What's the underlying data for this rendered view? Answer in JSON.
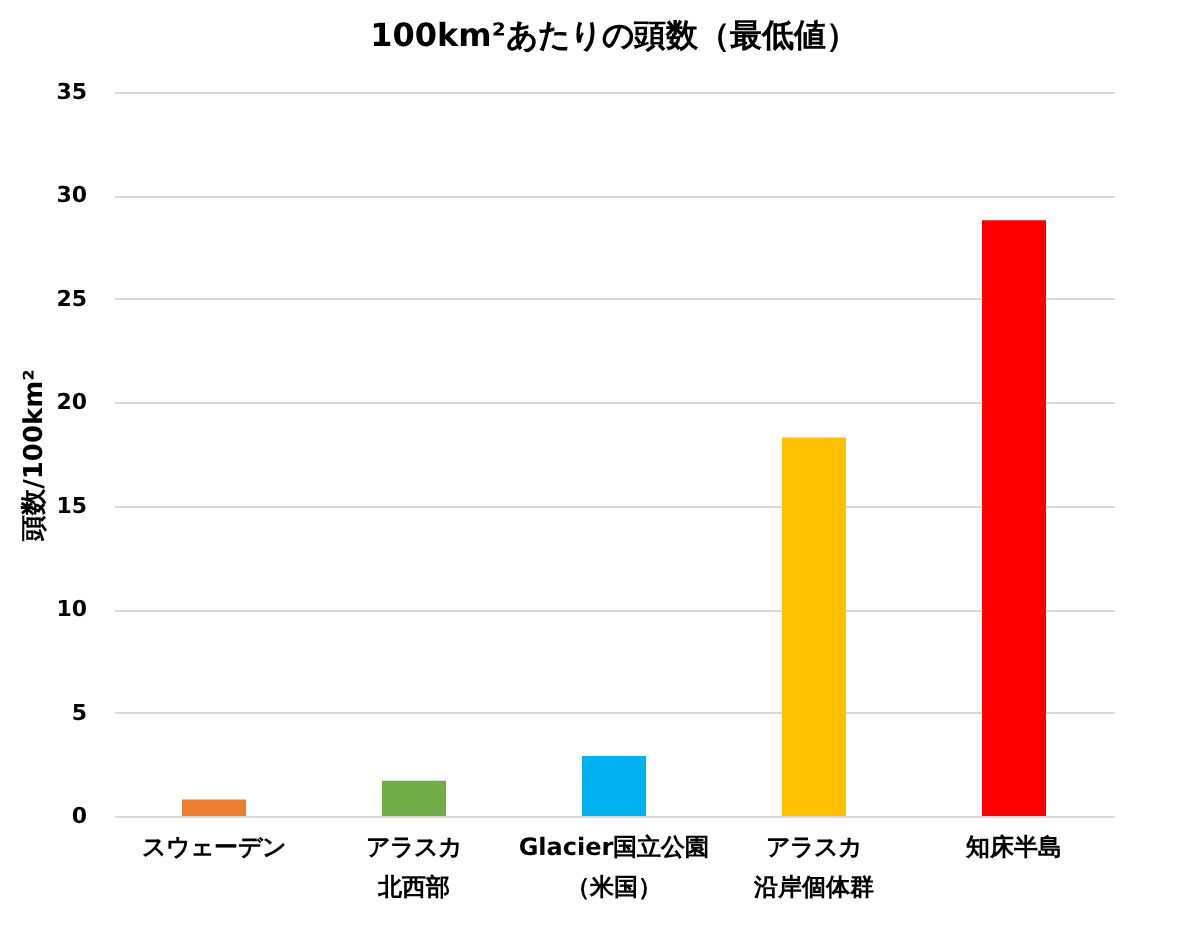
{
  "chart_data": {
    "type": "bar",
    "title": "100km²あたりの頭数（最低値）",
    "ylabel": "頭数/100km²",
    "categories": [
      "スウェーデン",
      "アラスカ北西部",
      "Glacier国立公園（米国）",
      "アラスカ沿岸個体群",
      "知床半島"
    ],
    "values": [
      0.8,
      1.7,
      2.9,
      18.3,
      28.8
    ],
    "colors": [
      "#ed7d31",
      "#70ad47",
      "#00b0f0",
      "#ffc000",
      "#ff0000"
    ],
    "ylim": [
      0,
      35
    ],
    "yticks": [
      0,
      5,
      10,
      15,
      20,
      25,
      30,
      35
    ],
    "grid": "y"
  }
}
